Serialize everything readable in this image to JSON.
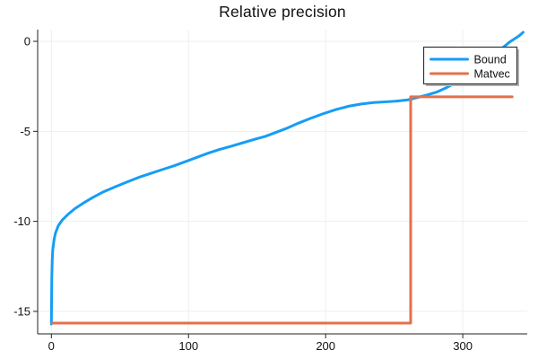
{
  "title": "Relative precision",
  "colors": {
    "bound_blue": "#169df5",
    "matvec_orange": "#e2714b",
    "grid": "#efefef",
    "axis": "#222222",
    "tick_text": "#111111",
    "legend_border": "#333333",
    "legend_shadow": "#b3b3b3",
    "legend_bg": "#ffffff",
    "background": "#ffffff"
  },
  "legend": {
    "position": "top-right",
    "entries": [
      {
        "label": "Bound",
        "color": "#169df5"
      },
      {
        "label": "Matvec",
        "color": "#e2714b"
      }
    ]
  },
  "chart_data": {
    "type": "line",
    "title": "Relative precision",
    "xlabel": "",
    "ylabel": "",
    "xlim": [
      -10,
      347
    ],
    "ylim": [
      -16.25,
      0.65
    ],
    "xticks": [
      0,
      100,
      200,
      300
    ],
    "yticks": [
      0,
      -5,
      -10,
      -15
    ],
    "grid": true,
    "legend_position": "top-right",
    "series": [
      {
        "name": "Bound",
        "color": "#169df5",
        "points": [
          [
            0,
            -15.7
          ],
          [
            0.3,
            -13.2
          ],
          [
            0.6,
            -12.2
          ],
          [
            1,
            -11.6
          ],
          [
            2,
            -11.0
          ],
          [
            3,
            -10.65
          ],
          [
            5,
            -10.25
          ],
          [
            8,
            -9.92
          ],
          [
            12,
            -9.62
          ],
          [
            17,
            -9.3
          ],
          [
            23,
            -9.0
          ],
          [
            30,
            -8.68
          ],
          [
            38,
            -8.36
          ],
          [
            46,
            -8.1
          ],
          [
            55,
            -7.82
          ],
          [
            64,
            -7.55
          ],
          [
            72,
            -7.35
          ],
          [
            81,
            -7.12
          ],
          [
            90,
            -6.9
          ],
          [
            100,
            -6.62
          ],
          [
            107,
            -6.42
          ],
          [
            114,
            -6.22
          ],
          [
            122,
            -6.02
          ],
          [
            130,
            -5.85
          ],
          [
            139,
            -5.65
          ],
          [
            148,
            -5.45
          ],
          [
            156,
            -5.28
          ],
          [
            163,
            -5.08
          ],
          [
            171,
            -4.85
          ],
          [
            180,
            -4.55
          ],
          [
            190,
            -4.25
          ],
          [
            199,
            -4.0
          ],
          [
            208,
            -3.78
          ],
          [
            217,
            -3.6
          ],
          [
            226,
            -3.48
          ],
          [
            235,
            -3.4
          ],
          [
            244,
            -3.36
          ],
          [
            252,
            -3.32
          ],
          [
            260,
            -3.25
          ],
          [
            267,
            -3.12
          ],
          [
            274,
            -2.98
          ],
          [
            281,
            -2.82
          ],
          [
            288,
            -2.58
          ],
          [
            295,
            -2.28
          ],
          [
            302,
            -1.92
          ],
          [
            310,
            -1.5
          ],
          [
            318,
            -1.05
          ],
          [
            326,
            -0.55
          ],
          [
            334,
            -0.05
          ],
          [
            341,
            0.3
          ],
          [
            344,
            0.5
          ]
        ]
      },
      {
        "name": "Matvec",
        "color": "#e2714b",
        "points": [
          [
            0.5,
            -15.65
          ],
          [
            262,
            -15.65
          ],
          [
            262,
            -3.08
          ],
          [
            336,
            -3.08
          ]
        ]
      }
    ]
  }
}
